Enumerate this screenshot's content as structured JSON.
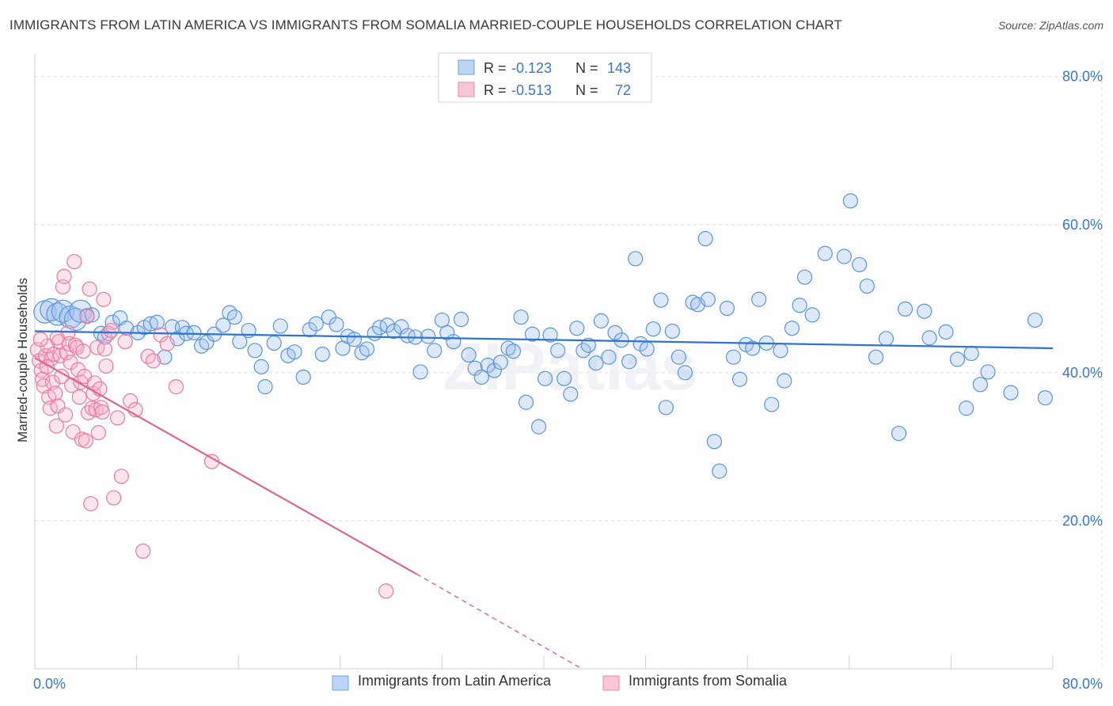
{
  "title": "IMMIGRANTS FROM LATIN AMERICA VS IMMIGRANTS FROM SOMALIA MARRIED-COUPLE HOUSEHOLDS CORRELATION CHART",
  "source": "Source: ZipAtlas.com",
  "watermark": "ZIPatlas",
  "colors": {
    "blue": "#6fa3e6",
    "blue_line": "#2f74cf",
    "pink": "#ef86a8",
    "pink_line": "#e0648f",
    "tick_label": "#3a78c9"
  },
  "legend": {
    "rows": [
      {
        "r_label": "R =",
        "r_value": "-0.123",
        "n_label": "N =",
        "n_value": "143"
      },
      {
        "r_label": "R =",
        "r_value": "-0.513",
        "n_label": "N =",
        "n_value": "72"
      }
    ]
  },
  "chart_data": {
    "type": "scatter",
    "title": "IMMIGRANTS FROM LATIN AMERICA VS IMMIGRANTS FROM SOMALIA MARRIED-COUPLE HOUSEHOLDS CORRELATION CHART",
    "xlabel": "",
    "ylabel": "Married-couple Households",
    "xlim": [
      0,
      80
    ],
    "ylim": [
      0,
      82
    ],
    "x_tick_labels": [
      "0.0%",
      "80.0%"
    ],
    "y_ticks": [
      20,
      40,
      60,
      80
    ],
    "y_tick_labels": [
      "20.0%",
      "40.0%",
      "60.0%",
      "80.0%"
    ],
    "grid": true,
    "legend_placement": "bottom",
    "series": [
      {
        "name": "Immigrants from Latin America",
        "color": "#6fa3e6",
        "trend": {
          "x": [
            0,
            80
          ],
          "y": [
            45.6,
            43.3
          ]
        },
        "points": [
          [
            0.8,
            48.2
          ],
          [
            1.3,
            48.5
          ],
          [
            1.8,
            47.9
          ],
          [
            2.2,
            48.3
          ],
          [
            2.8,
            47.5
          ],
          [
            3.2,
            47.2
          ],
          [
            3.6,
            48.3
          ],
          [
            4.1,
            47.7
          ],
          [
            4.5,
            47.8
          ],
          [
            5.2,
            45.3
          ],
          [
            5.5,
            44.8
          ],
          [
            6.1,
            46.8
          ],
          [
            6.7,
            47.4
          ],
          [
            7.2,
            46
          ],
          [
            8.1,
            45.4
          ],
          [
            8.6,
            46.1
          ],
          [
            9.1,
            46.6
          ],
          [
            9.6,
            46.8
          ],
          [
            10.2,
            42.1
          ],
          [
            10.8,
            46.2
          ],
          [
            11.2,
            44.6
          ],
          [
            11.6,
            46.1
          ],
          [
            11.9,
            45.3
          ],
          [
            12.5,
            45.4
          ],
          [
            13.1,
            43.6
          ],
          [
            13.5,
            44.1
          ],
          [
            14.1,
            45.2
          ],
          [
            14.8,
            46.4
          ],
          [
            15.3,
            48.1
          ],
          [
            15.7,
            47.5
          ],
          [
            16.1,
            44.2
          ],
          [
            16.8,
            45.7
          ],
          [
            17.3,
            43
          ],
          [
            17.8,
            40.8
          ],
          [
            18.1,
            38.1
          ],
          [
            18.8,
            44
          ],
          [
            19.3,
            46.3
          ],
          [
            19.9,
            42.3
          ],
          [
            20.4,
            42.8
          ],
          [
            21.1,
            39.4
          ],
          [
            21.6,
            45.8
          ],
          [
            22.1,
            46.6
          ],
          [
            22.6,
            42.5
          ],
          [
            23.1,
            47.5
          ],
          [
            23.7,
            46.5
          ],
          [
            24.2,
            43.3
          ],
          [
            24.6,
            44.9
          ],
          [
            25.1,
            44.5
          ],
          [
            25.7,
            42.7
          ],
          [
            26.1,
            43.2
          ],
          [
            26.7,
            45.3
          ],
          [
            27.1,
            46.1
          ],
          [
            27.7,
            46.4
          ],
          [
            28.2,
            45.6
          ],
          [
            28.8,
            46.2
          ],
          [
            29.3,
            45
          ],
          [
            29.9,
            44.8
          ],
          [
            30.3,
            40.1
          ],
          [
            30.9,
            44.9
          ],
          [
            31.4,
            43
          ],
          [
            32,
            47.1
          ],
          [
            32.4,
            45.4
          ],
          [
            32.9,
            44.2
          ],
          [
            33.5,
            47.2
          ],
          [
            34.1,
            42.4
          ],
          [
            34.6,
            40.6
          ],
          [
            35.1,
            39.4
          ],
          [
            35.6,
            41
          ],
          [
            36.1,
            40.3
          ],
          [
            36.6,
            41.4
          ],
          [
            37.2,
            43.3
          ],
          [
            37.6,
            42.9
          ],
          [
            38.2,
            47.5
          ],
          [
            38.6,
            36
          ],
          [
            39.1,
            45.2
          ],
          [
            39.6,
            32.7
          ],
          [
            40.1,
            39.2
          ],
          [
            40.5,
            45.1
          ],
          [
            41.1,
            43
          ],
          [
            41.6,
            39.2
          ],
          [
            42.1,
            37.1
          ],
          [
            42.6,
            46
          ],
          [
            43.1,
            43
          ],
          [
            43.5,
            43.7
          ],
          [
            44.1,
            41.3
          ],
          [
            44.5,
            47
          ],
          [
            45.1,
            42.1
          ],
          [
            45.6,
            45.4
          ],
          [
            46.1,
            44.4
          ],
          [
            46.7,
            41.5
          ],
          [
            47.2,
            55.4
          ],
          [
            47.6,
            43.9
          ],
          [
            48.1,
            43.2
          ],
          [
            48.6,
            45.9
          ],
          [
            49.2,
            49.8
          ],
          [
            49.6,
            35.3
          ],
          [
            50.1,
            45.6
          ],
          [
            50.6,
            42.1
          ],
          [
            51.1,
            40
          ],
          [
            51.7,
            49.5
          ],
          [
            52.1,
            49.2
          ],
          [
            52.7,
            58.1
          ],
          [
            52.9,
            49.9
          ],
          [
            53.4,
            30.7
          ],
          [
            53.8,
            26.7
          ],
          [
            54.4,
            48.7
          ],
          [
            54.9,
            42.1
          ],
          [
            55.4,
            39.1
          ],
          [
            55.9,
            43.8
          ],
          [
            56.4,
            43.3
          ],
          [
            56.9,
            49.9
          ],
          [
            57.5,
            44
          ],
          [
            57.9,
            35.7
          ],
          [
            58.6,
            43
          ],
          [
            58.9,
            38.9
          ],
          [
            59.5,
            46
          ],
          [
            60.1,
            49.1
          ],
          [
            60.5,
            52.9
          ],
          [
            61.1,
            47.8
          ],
          [
            62.1,
            56.1
          ],
          [
            63.6,
            55.7
          ],
          [
            64.1,
            63.2
          ],
          [
            64.8,
            54.6
          ],
          [
            65.4,
            51.7
          ],
          [
            66.1,
            42.1
          ],
          [
            66.9,
            44.6
          ],
          [
            67.9,
            31.8
          ],
          [
            68.4,
            48.6
          ],
          [
            69.9,
            48.3
          ],
          [
            70.3,
            44.7
          ],
          [
            71.6,
            45.5
          ],
          [
            72.5,
            41.8
          ],
          [
            73.2,
            35.2
          ],
          [
            73.6,
            42.6
          ],
          [
            74.3,
            38.4
          ],
          [
            74.9,
            40.1
          ],
          [
            76.7,
            37.3
          ],
          [
            78.6,
            47.1
          ],
          [
            79.4,
            36.6
          ]
        ]
      },
      {
        "name": "Immigrants from Somalia",
        "color": "#ef86a8",
        "trend": {
          "x": [
            0,
            30
          ],
          "y": [
            42,
            12.8
          ]
        },
        "trend_dashed": {
          "x": [
            30,
            43
          ],
          "y": [
            12.8,
            0
          ]
        },
        "points": [
          [
            0.2,
            43.1
          ],
          [
            0.35,
            41.6
          ],
          [
            0.5,
            40.3
          ],
          [
            0.6,
            39.1
          ],
          [
            0.7,
            38.2
          ],
          [
            0.85,
            42.3
          ],
          [
            1,
            43.6
          ],
          [
            1.1,
            36.7
          ],
          [
            1.2,
            35.2
          ],
          [
            1.3,
            41.9
          ],
          [
            1.4,
            38.7
          ],
          [
            1.5,
            42.5
          ],
          [
            1.6,
            37.2
          ],
          [
            1.7,
            32.8
          ],
          [
            1.8,
            35.5
          ],
          [
            1.9,
            44.2
          ],
          [
            2,
            42.3
          ],
          [
            2.1,
            39.5
          ],
          [
            2.2,
            51.6
          ],
          [
            2.3,
            53
          ],
          [
            2.4,
            34.3
          ],
          [
            2.5,
            42.7
          ],
          [
            2.6,
            45.4
          ],
          [
            2.7,
            43.9
          ],
          [
            2.8,
            41.4
          ],
          [
            2.9,
            38.3
          ],
          [
            3,
            32
          ],
          [
            3.1,
            55
          ],
          [
            3.2,
            43.7
          ],
          [
            3.3,
            43.4
          ],
          [
            3.4,
            40.4
          ],
          [
            3.5,
            36.7
          ],
          [
            3.6,
            38.7
          ],
          [
            3.7,
            31
          ],
          [
            3.8,
            42.9
          ],
          [
            3.9,
            39.5
          ],
          [
            4,
            30.8
          ],
          [
            4.1,
            47.6
          ],
          [
            4.2,
            34.6
          ],
          [
            4.3,
            51.3
          ],
          [
            4.4,
            22.3
          ],
          [
            4.5,
            35.2
          ],
          [
            4.6,
            37.2
          ],
          [
            4.7,
            38.6
          ],
          [
            4.8,
            35
          ],
          [
            4.9,
            43.4
          ],
          [
            5,
            31.9
          ],
          [
            5.1,
            37.8
          ],
          [
            5.2,
            35.3
          ],
          [
            5.3,
            34.7
          ],
          [
            5.4,
            49.9
          ],
          [
            5.5,
            43.2
          ],
          [
            5.6,
            40.9
          ],
          [
            5.8,
            45.3
          ],
          [
            6,
            45.7
          ],
          [
            6.2,
            23.1
          ],
          [
            6.5,
            33.9
          ],
          [
            6.8,
            26
          ],
          [
            7.1,
            44.2
          ],
          [
            7.5,
            36.2
          ],
          [
            7.9,
            35
          ],
          [
            8.5,
            15.9
          ],
          [
            8.9,
            42.2
          ],
          [
            9.3,
            41.6
          ],
          [
            9.9,
            45.1
          ],
          [
            10.4,
            43.9
          ],
          [
            11.1,
            38.1
          ],
          [
            13.9,
            28
          ],
          [
            27.6,
            10.5
          ],
          [
            0.45,
            44.5
          ],
          [
            0.95,
            40.8
          ],
          [
            1.75,
            44.7
          ]
        ]
      }
    ]
  }
}
